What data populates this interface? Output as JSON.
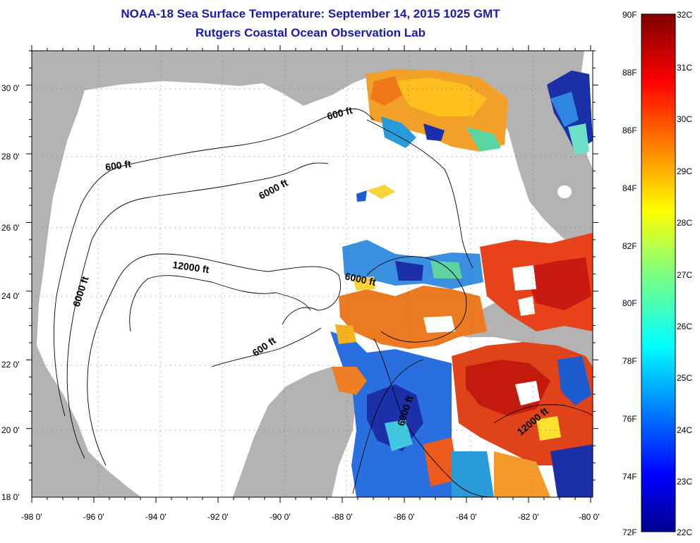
{
  "title": {
    "line1": "NOAA-18 Sea Surface Temperature:  September 14, 2015 1025 GMT",
    "line2": "Rutgers Coastal Ocean Observation Lab"
  },
  "map": {
    "lon_ticks": [
      "-98 0'",
      "-96 0'",
      "-94 0'",
      "-92 0'",
      "-90 0'",
      "-88 0'",
      "-86 0'",
      "-84 0'",
      "-82 0'",
      "-80 0'"
    ],
    "lat_ticks": [
      "30 0'",
      "28 0'",
      "26 0'",
      "24 0'",
      "22 0'",
      "20 0'",
      "18 0'"
    ],
    "contour_labels": [
      "600 ft",
      "600 ft",
      "6000 ft",
      "6000 ft",
      "12000 ft",
      "6000 ft",
      "600 ft",
      "6000 ft",
      "12000 ft"
    ],
    "colors": {
      "land": "#b3b3b3",
      "ocean_nodata": "#ffffff",
      "contour": "#000000"
    }
  },
  "colorbar": {
    "fahrenheit": [
      "90F",
      "88F",
      "86F",
      "84F",
      "82F",
      "80F",
      "78F",
      "76F",
      "74F",
      "72F"
    ],
    "celsius": [
      "32C",
      "31C",
      "30C",
      "29C",
      "28C",
      "27C",
      "26C",
      "25C",
      "24C",
      "23C",
      "22C"
    ],
    "colormap": "jet"
  }
}
